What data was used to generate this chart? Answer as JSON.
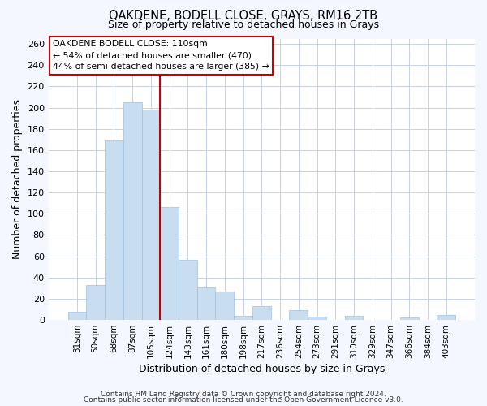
{
  "title": "OAKDENE, BODELL CLOSE, GRAYS, RM16 2TB",
  "subtitle": "Size of property relative to detached houses in Grays",
  "xlabel": "Distribution of detached houses by size in Grays",
  "ylabel": "Number of detached properties",
  "bar_labels": [
    "31sqm",
    "50sqm",
    "68sqm",
    "87sqm",
    "105sqm",
    "124sqm",
    "143sqm",
    "161sqm",
    "180sqm",
    "198sqm",
    "217sqm",
    "236sqm",
    "254sqm",
    "273sqm",
    "291sqm",
    "310sqm",
    "329sqm",
    "347sqm",
    "366sqm",
    "384sqm",
    "403sqm"
  ],
  "bar_values": [
    8,
    33,
    169,
    205,
    198,
    106,
    57,
    31,
    27,
    4,
    13,
    0,
    9,
    3,
    0,
    4,
    0,
    0,
    2,
    0,
    5
  ],
  "bar_color": "#c8ddf0",
  "bar_edge_color": "#a0c0de",
  "vline_color": "#cc0000",
  "ylim": [
    0,
    265
  ],
  "yticks": [
    0,
    20,
    40,
    60,
    80,
    100,
    120,
    140,
    160,
    180,
    200,
    220,
    240,
    260
  ],
  "annotation_title": "OAKDENE BODELL CLOSE: 110sqm",
  "annotation_line1": "← 54% of detached houses are smaller (470)",
  "annotation_line2": "44% of semi-detached houses are larger (385) →",
  "footer_line1": "Contains HM Land Registry data © Crown copyright and database right 2024.",
  "footer_line2": "Contains public sector information licensed under the Open Government Licence v3.0.",
  "background_color": "#f4f7ff",
  "plot_background_color": "#ffffff",
  "grid_color": "#c8d0e8"
}
